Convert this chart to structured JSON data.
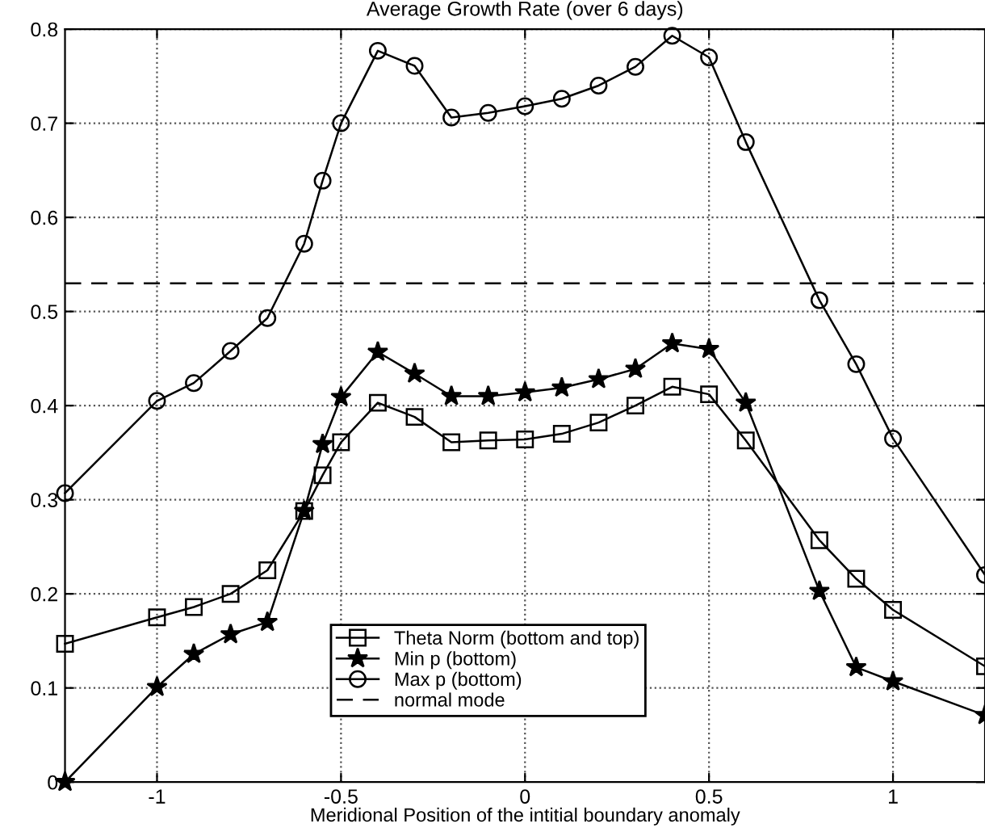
{
  "chart_data": {
    "type": "line",
    "title": "Average Growth Rate (over 6 days)",
    "xlabel": "Meridional Position of the intitial boundary anomaly",
    "x": [
      -1.25,
      -1,
      -0.9,
      -0.8,
      -0.7,
      -0.6,
      -0.55,
      -0.5,
      -0.4,
      -0.3,
      -0.2,
      -0.1,
      0,
      0.1,
      0.2,
      0.3,
      0.4,
      0.5,
      0.6,
      0.8,
      0.9,
      1,
      1.25
    ],
    "series": [
      {
        "name": "Theta Norm (bottom and top)",
        "color": "#000000",
        "marker": "square",
        "values": [
          0.147,
          0.175,
          0.186,
          0.2,
          0.225,
          0.288,
          0.326,
          0.361,
          0.403,
          0.388,
          0.361,
          0.363,
          0.364,
          0.37,
          0.382,
          0.4,
          0.42,
          0.412,
          0.363,
          0.257,
          0.216,
          0.183,
          0.123
        ]
      },
      {
        "name": "Min p (bottom)",
        "color": "#000000",
        "marker": "star",
        "values": [
          0.0,
          0.101,
          0.136,
          0.157,
          0.17,
          0.288,
          0.359,
          0.409,
          0.457,
          0.434,
          0.41,
          0.41,
          0.414,
          0.419,
          0.428,
          0.439,
          0.466,
          0.46,
          0.403,
          0.203,
          0.122,
          0.107,
          0.071
        ]
      },
      {
        "name": "Max p (bottom)",
        "color": "#000000",
        "marker": "circle",
        "values": [
          0.307,
          0.405,
          0.424,
          0.458,
          0.493,
          0.572,
          0.639,
          0.7,
          0.777,
          0.761,
          0.706,
          0.711,
          0.718,
          0.726,
          0.74,
          0.76,
          0.793,
          0.77,
          0.68,
          0.512,
          0.444,
          0.365,
          0.22
        ]
      }
    ],
    "ref_lines": [
      {
        "axis": "y",
        "value": 0.53,
        "label": "normal mode",
        "color": "#000000",
        "line_style": "dashed"
      }
    ],
    "xlim": [
      -1.25,
      1.25
    ],
    "xticks": [
      -1,
      -0.5,
      0,
      0.5,
      1
    ],
    "ylim": [
      0,
      0.8
    ],
    "yticks": [
      0,
      0.1,
      0.2,
      0.3,
      0.4,
      0.5,
      0.6,
      0.7,
      0.8
    ],
    "grid": true,
    "legend": "bottom",
    "line_style": "solid"
  }
}
